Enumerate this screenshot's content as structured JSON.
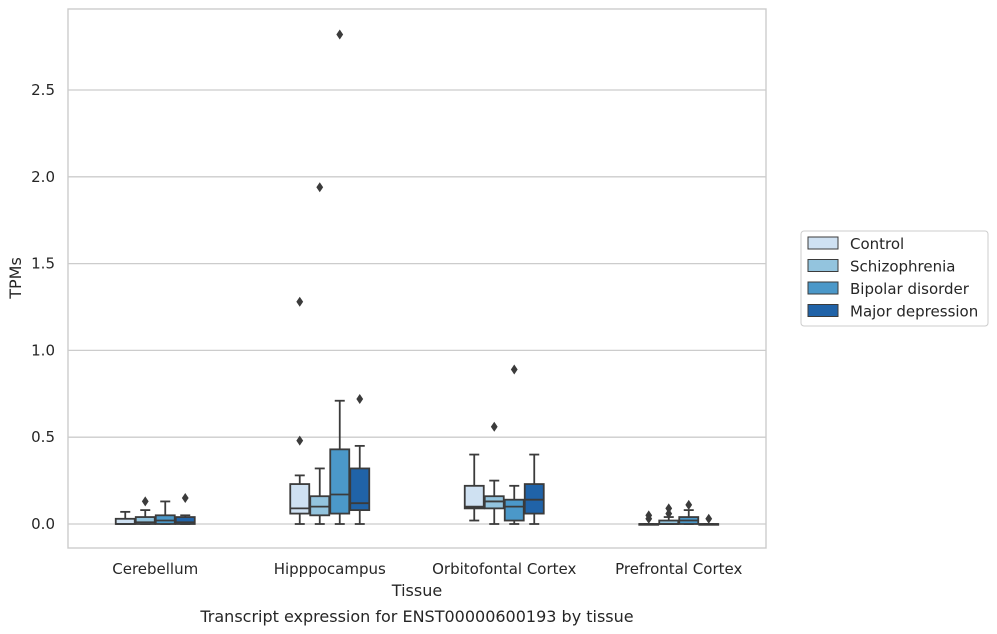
{
  "caption": "Transcript expression for ENST00000600193 by tissue",
  "chart_data": {
    "type": "box",
    "xlabel": "Tissue",
    "ylabel": "TPMs",
    "ylim": [
      -0.14,
      2.9
    ],
    "yticks": [
      "0.0",
      "0.5",
      "1.0",
      "1.5",
      "2.0",
      "2.5"
    ],
    "ytick_values": [
      0.0,
      0.5,
      1.0,
      1.5,
      2.0,
      2.5
    ],
    "grid": "horizontal",
    "legend_position": "right",
    "categories": [
      "Cerebellum",
      "Hipppocampus",
      "Orbitofontal Cortex",
      "Prefrontal Cortex"
    ],
    "series": [
      {
        "name": "Control",
        "color": "#cfe1f2",
        "boxes": [
          {
            "whisker_low": 0.0,
            "q1": 0.0,
            "median": 0.0,
            "q3": 0.03,
            "whisker_high": 0.07,
            "outliers": []
          },
          {
            "whisker_low": 0.0,
            "q1": 0.06,
            "median": 0.09,
            "q3": 0.23,
            "whisker_high": 0.28,
            "outliers": [
              0.48,
              1.28
            ]
          },
          {
            "whisker_low": 0.02,
            "q1": 0.09,
            "median": 0.1,
            "q3": 0.22,
            "whisker_high": 0.4,
            "outliers": []
          },
          {
            "whisker_low": 0.0,
            "q1": 0.0,
            "median": 0.0,
            "q3": 0.0,
            "whisker_high": 0.0,
            "outliers": [
              0.03,
              0.05
            ]
          }
        ]
      },
      {
        "name": "Schizophrenia",
        "color": "#93c4de",
        "boxes": [
          {
            "whisker_low": 0.0,
            "q1": 0.0,
            "median": 0.01,
            "q3": 0.04,
            "whisker_high": 0.08,
            "outliers": [
              0.13
            ]
          },
          {
            "whisker_low": 0.0,
            "q1": 0.05,
            "median": 0.1,
            "q3": 0.16,
            "whisker_high": 0.32,
            "outliers": [
              1.94
            ]
          },
          {
            "whisker_low": 0.0,
            "q1": 0.09,
            "median": 0.13,
            "q3": 0.16,
            "whisker_high": 0.25,
            "outliers": [
              0.56
            ]
          },
          {
            "whisker_low": 0.0,
            "q1": 0.0,
            "median": 0.0,
            "q3": 0.02,
            "whisker_high": 0.04,
            "outliers": [
              0.06,
              0.09
            ]
          }
        ]
      },
      {
        "name": "Bipolar disorder",
        "color": "#4b98c9",
        "boxes": [
          {
            "whisker_low": 0.0,
            "q1": 0.0,
            "median": 0.02,
            "q3": 0.05,
            "whisker_high": 0.13,
            "outliers": []
          },
          {
            "whisker_low": 0.0,
            "q1": 0.06,
            "median": 0.17,
            "q3": 0.43,
            "whisker_high": 0.71,
            "outliers": [
              2.82
            ]
          },
          {
            "whisker_low": 0.0,
            "q1": 0.02,
            "median": 0.1,
            "q3": 0.14,
            "whisker_high": 0.22,
            "outliers": [
              0.89
            ]
          },
          {
            "whisker_low": 0.0,
            "q1": 0.0,
            "median": 0.02,
            "q3": 0.04,
            "whisker_high": 0.08,
            "outliers": [
              0.11
            ]
          }
        ]
      },
      {
        "name": "Major depression",
        "color": "#2063a8",
        "boxes": [
          {
            "whisker_low": 0.0,
            "q1": 0.0,
            "median": 0.01,
            "q3": 0.04,
            "whisker_high": 0.05,
            "outliers": [
              0.15
            ]
          },
          {
            "whisker_low": 0.0,
            "q1": 0.08,
            "median": 0.12,
            "q3": 0.32,
            "whisker_high": 0.45,
            "outliers": [
              0.72
            ]
          },
          {
            "whisker_low": 0.0,
            "q1": 0.06,
            "median": 0.14,
            "q3": 0.23,
            "whisker_high": 0.4,
            "outliers": []
          },
          {
            "whisker_low": 0.0,
            "q1": 0.0,
            "median": 0.0,
            "q3": 0.0,
            "whisker_high": 0.0,
            "outliers": [
              0.03
            ]
          }
        ]
      }
    ]
  }
}
